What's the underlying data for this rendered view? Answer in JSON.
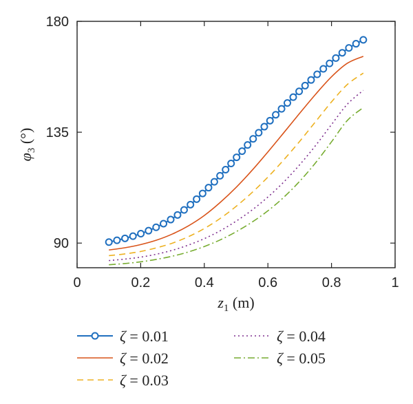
{
  "chart_data": {
    "type": "line",
    "xlabel": {
      "var": "z",
      "sub": "1",
      "unit": " (m)"
    },
    "ylabel": {
      "var": "φ",
      "sub": "3",
      "unit": " (°)"
    },
    "xlim": [
      0,
      1
    ],
    "ylim": [
      80,
      180
    ],
    "xticks": [
      0,
      0.2,
      0.4,
      0.6,
      0.8,
      1
    ],
    "xtick_labels": [
      "0",
      "0.2",
      "0.4",
      "0.6",
      "0.8",
      "1"
    ],
    "yticks": [
      90,
      135,
      180
    ],
    "ytick_labels": [
      "90",
      "135",
      "180"
    ],
    "grid": false,
    "legend_position": "below",
    "x": [
      0.1,
      0.15,
      0.2,
      0.25,
      0.3,
      0.35,
      0.4,
      0.45,
      0.5,
      0.55,
      0.6,
      0.65,
      0.7,
      0.75,
      0.8,
      0.85,
      0.9
    ],
    "series": [
      {
        "name": "ζ = 0.01",
        "color": "#1f6fbf",
        "style": "solid-circle",
        "values": [
          90.4,
          91.9,
          93.8,
          96.5,
          100.0,
          104.9,
          110.8,
          117.4,
          124.6,
          131.8,
          138.8,
          145.4,
          151.8,
          157.9,
          163.6,
          168.8,
          172.5
        ]
      },
      {
        "name": "ζ = 0.02",
        "color": "#d95319",
        "style": "solid",
        "values": [
          87.2,
          88.1,
          89.4,
          91.2,
          93.7,
          97.0,
          101.2,
          106.5,
          112.6,
          119.5,
          127.0,
          134.8,
          142.7,
          150.4,
          157.5,
          163.0,
          165.8
        ]
      },
      {
        "name": "ζ = 0.03",
        "color": "#edb120",
        "style": "dashed",
        "values": [
          84.9,
          85.6,
          86.6,
          88.1,
          90.0,
          92.6,
          95.9,
          100.0,
          104.9,
          110.5,
          116.8,
          123.8,
          131.3,
          139.3,
          147.3,
          154.4,
          159.0
        ]
      },
      {
        "name": "ζ = 0.04",
        "color": "#7e2f8e",
        "style": "dotted",
        "values": [
          82.9,
          83.5,
          84.3,
          85.5,
          87.1,
          89.2,
          91.8,
          95.0,
          98.9,
          103.4,
          108.7,
          114.8,
          121.8,
          129.6,
          138.1,
          146.4,
          152.0
        ]
      },
      {
        "name": "ζ = 0.05",
        "color": "#77ac30",
        "style": "dashdot",
        "values": [
          81.2,
          81.7,
          82.4,
          83.4,
          84.7,
          86.4,
          88.6,
          91.3,
          94.6,
          98.5,
          103.1,
          108.6,
          115.1,
          122.6,
          131.1,
          139.8,
          145.0
        ]
      }
    ]
  }
}
